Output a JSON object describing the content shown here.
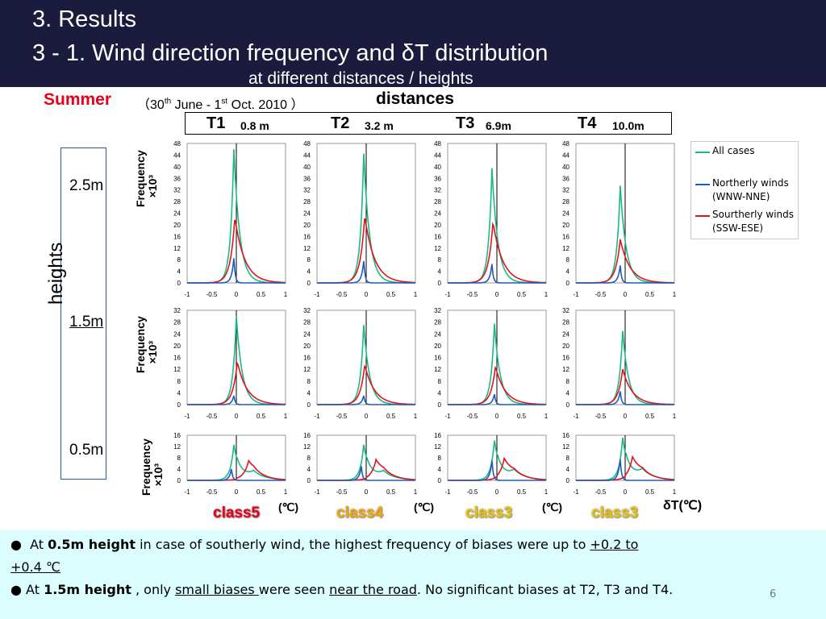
{
  "header": {
    "line1": "3.    Results",
    "line2": "3 - 1. Wind direction frequency and δT distribution",
    "line3": "at different distances / heights"
  },
  "season": "Summer",
  "period": {
    "open": "（30",
    "sup1": "th",
    "mid": " June - 1",
    "sup2": "st",
    "close": " Oct. 2010 ）"
  },
  "distances_label": "distances",
  "heights_label": "heights",
  "stations": [
    {
      "name": "T1",
      "distance": "0.8 m"
    },
    {
      "name": "T2",
      "distance": "3.2 m"
    },
    {
      "name": "T3",
      "distance": "6.9m"
    },
    {
      "name": "T4",
      "distance": "10.0m"
    }
  ],
  "heights": [
    "2.5m",
    "1.5m",
    "0.5m"
  ],
  "ylabel": "Frequency",
  "ylabel_unit": "×10³",
  "xlabel_unit": "δT(℃)",
  "unit_label": "(℃)",
  "classes": [
    {
      "label": "class5",
      "color": "#e6001a"
    },
    {
      "label": "class4",
      "color": "#f5a800"
    },
    {
      "label": "class3",
      "color": "#e8c400"
    },
    {
      "label": "class3",
      "color": "#e8c400"
    }
  ],
  "legend": [
    {
      "label": "All cases",
      "color": "#1ab888"
    },
    {
      "label": "Northerly winds\n(WNW-NNE)",
      "color": "#1f5bbf"
    },
    {
      "label": "Sourtherly winds\n(SSW-ESE)",
      "color": "#e3131b"
    }
  ],
  "chart_data": {
    "type": "line",
    "x_ticks": [
      "-1",
      "-0.5",
      "0",
      "0.5",
      "1"
    ],
    "xlim": [
      -1,
      1
    ],
    "rows": [
      {
        "height": "2.5m",
        "ylim": [
          0,
          48
        ],
        "y_ticks": [
          "0",
          "4",
          "8",
          "12",
          "16",
          "20",
          "24",
          "28",
          "32",
          "36",
          "40",
          "44",
          "48"
        ]
      },
      {
        "height": "1.5m",
        "ylim": [
          0,
          32
        ],
        "y_ticks": [
          "0",
          "4",
          "8",
          "12",
          "16",
          "20",
          "24",
          "28",
          "32"
        ]
      },
      {
        "height": "0.5m",
        "ylim": [
          0,
          16
        ],
        "y_ticks": [
          "0",
          "4",
          "8",
          "12",
          "16"
        ]
      }
    ],
    "series_names": [
      "All cases",
      "Northerly winds (WNW-NNE)",
      "Sourtherly winds (SSW-ESE)"
    ],
    "panels": [
      {
        "station": "T1",
        "height": "2.5m",
        "peaks": {
          "all": [
            -0.05,
            46
          ],
          "north": [
            -0.05,
            8.5
          ],
          "south": [
            -0.03,
            22.5
          ]
        }
      },
      {
        "station": "T2",
        "height": "2.5m",
        "peaks": {
          "all": [
            -0.05,
            44.5
          ],
          "north": [
            -0.05,
            7.5
          ],
          "south": [
            -0.03,
            23
          ]
        }
      },
      {
        "station": "T3",
        "height": "2.5m",
        "peaks": {
          "all": [
            -0.1,
            39.5
          ],
          "north": [
            -0.1,
            6.5
          ],
          "south": [
            -0.08,
            21
          ]
        }
      },
      {
        "station": "T4",
        "height": "2.5m",
        "peaks": {
          "all": [
            -0.1,
            33.5
          ],
          "north": [
            -0.1,
            6
          ],
          "south": [
            -0.1,
            15
          ]
        }
      },
      {
        "station": "T1",
        "height": "1.5m",
        "peaks": {
          "all": [
            0,
            30
          ],
          "north": [
            -0.05,
            3
          ],
          "south": [
            0.02,
            14.5
          ]
        }
      },
      {
        "station": "T2",
        "height": "1.5m",
        "peaks": {
          "all": [
            -0.05,
            27
          ],
          "north": [
            -0.05,
            3
          ],
          "south": [
            -0.03,
            13.5
          ]
        }
      },
      {
        "station": "T3",
        "height": "1.5m",
        "peaks": {
          "all": [
            -0.05,
            27.5
          ],
          "north": [
            -0.05,
            3.5
          ],
          "south": [
            -0.03,
            13
          ]
        }
      },
      {
        "station": "T4",
        "height": "1.5m",
        "peaks": {
          "all": [
            -0.05,
            25
          ],
          "north": [
            -0.1,
            4.5
          ],
          "south": [
            -0.05,
            12
          ]
        }
      },
      {
        "station": "T1",
        "height": "0.5m",
        "peaks": {
          "all": [
            -0.05,
            12.5
          ],
          "north": [
            -0.1,
            4
          ],
          "south": [
            0.25,
            6
          ]
        }
      },
      {
        "station": "T2",
        "height": "0.5m",
        "peaks": {
          "all": [
            -0.05,
            12.5
          ],
          "north": [
            -0.1,
            5
          ],
          "south": [
            0.2,
            6.5
          ]
        }
      },
      {
        "station": "T3",
        "height": "0.5m",
        "peaks": {
          "all": [
            -0.05,
            14
          ],
          "north": [
            -0.1,
            7
          ],
          "south": [
            0.15,
            7
          ]
        }
      },
      {
        "station": "T4",
        "height": "0.5m",
        "peaks": {
          "all": [
            -0.05,
            15
          ],
          "north": [
            -0.1,
            7.5
          ],
          "south": [
            0.15,
            7.5
          ]
        }
      }
    ]
  },
  "footer": {
    "b1_pre": "At ",
    "b1_bold": "0.5m height",
    "b1_mid": "  in case of southerly wind, the highest frequency of biases were up to ",
    "b1_u": "+0.2 to",
    "b1_line2": "+0.4 ℃",
    "b2_pre": " At ",
    "b2_bold": "1.5m height",
    "b2_mid1": " , only ",
    "b2_u1": "small biases ",
    "b2_mid2": "were seen ",
    "b2_u2": "near the road",
    "b2_end": ". No significant biases at T2, T3 and T4.",
    "page": "6"
  }
}
